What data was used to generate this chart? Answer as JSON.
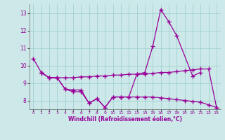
{
  "xlabel": "Windchill (Refroidissement éolien,°C)",
  "bg_color": "#cce8e8",
  "line_color": "#990099",
  "grid_color": "#99cccc",
  "ylim": [
    7.5,
    13.5
  ],
  "xlim": [
    -0.5,
    23.5
  ],
  "yticks": [
    8,
    9,
    10,
    11,
    12,
    13
  ],
  "xticks": [
    0,
    1,
    2,
    3,
    4,
    5,
    6,
    7,
    8,
    9,
    10,
    11,
    12,
    13,
    14,
    15,
    16,
    17,
    18,
    19,
    20,
    21,
    22,
    23
  ],
  "series1_x": [
    0,
    1,
    2,
    3,
    4,
    5,
    6,
    7,
    8,
    9,
    10,
    11,
    12,
    13,
    14,
    15,
    16,
    17,
    18,
    20,
    21
  ],
  "series1_y": [
    10.4,
    9.6,
    9.3,
    9.3,
    8.65,
    8.6,
    8.6,
    7.85,
    8.1,
    7.6,
    8.2,
    8.2,
    8.2,
    9.5,
    9.6,
    11.1,
    13.2,
    12.5,
    11.7,
    9.4,
    9.6
  ],
  "series2_x": [
    1,
    2,
    3,
    4,
    5,
    6,
    7,
    8,
    9,
    10,
    11,
    12,
    13,
    14,
    15,
    16,
    17,
    18,
    19,
    20,
    21,
    22,
    23
  ],
  "series2_y": [
    9.6,
    9.3,
    9.3,
    9.3,
    9.3,
    9.35,
    9.35,
    9.4,
    9.4,
    9.45,
    9.45,
    9.5,
    9.5,
    9.5,
    9.55,
    9.6,
    9.6,
    9.65,
    9.7,
    9.75,
    9.8,
    9.8,
    7.6
  ],
  "series3_x": [
    1,
    2,
    3,
    4,
    5,
    6,
    7,
    8,
    9,
    10,
    11,
    12,
    13,
    14,
    15,
    16,
    17,
    18,
    19,
    20,
    21,
    22,
    23
  ],
  "series3_y": [
    9.6,
    9.3,
    9.3,
    8.65,
    8.5,
    8.5,
    7.85,
    8.1,
    7.6,
    8.2,
    8.2,
    8.2,
    8.2,
    8.2,
    8.2,
    8.15,
    8.1,
    8.05,
    8.0,
    7.95,
    7.9,
    7.75,
    7.6
  ]
}
